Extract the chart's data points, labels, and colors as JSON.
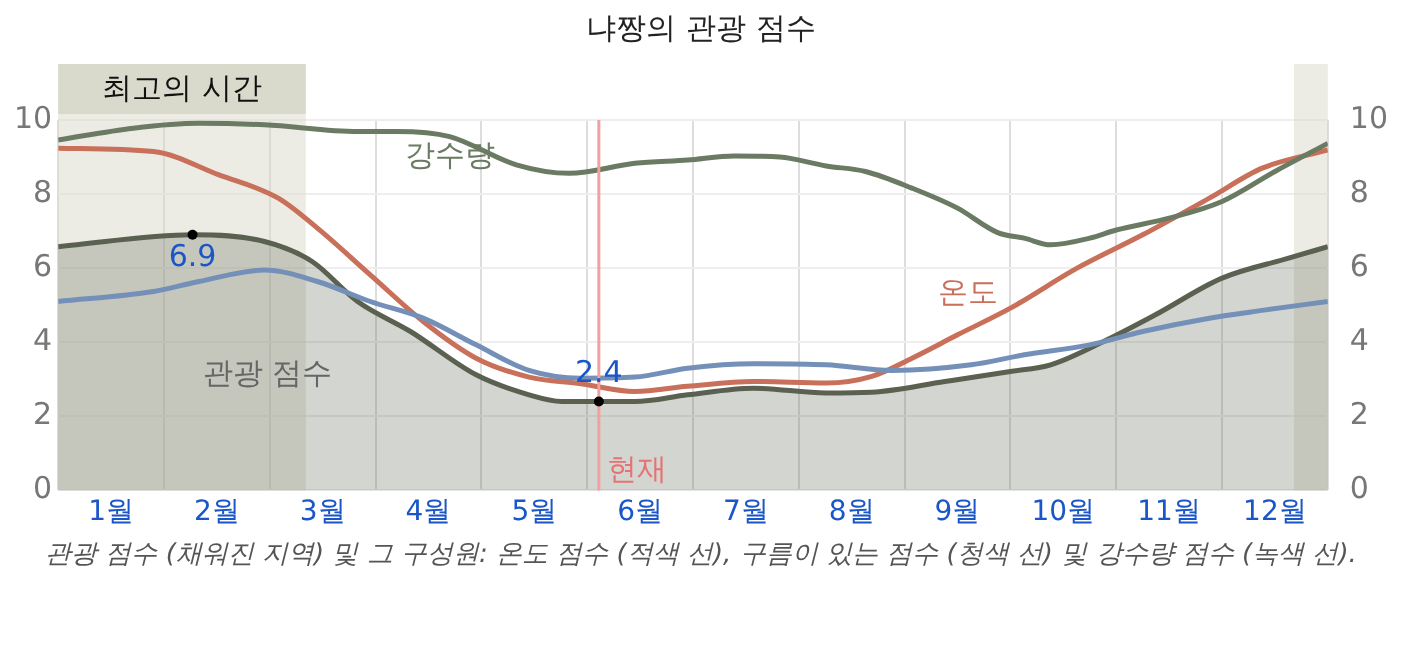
{
  "chart_data": {
    "type": "line",
    "title": "냐짱의 관광 점수",
    "xlim": [
      0,
      12
    ],
    "xticks": [
      {
        "value": 0,
        "label": null
      },
      {
        "value": 0.5,
        "label": "1월"
      },
      {
        "value": 1,
        "label": null
      },
      {
        "value": 1.5,
        "label": "2월"
      },
      {
        "value": 2,
        "label": null
      },
      {
        "value": 2.5,
        "label": "3월"
      },
      {
        "value": 3,
        "label": null
      },
      {
        "value": 3.5,
        "label": "4월"
      },
      {
        "value": 4,
        "label": null
      },
      {
        "value": 4.5,
        "label": "5월"
      },
      {
        "value": 5,
        "label": null
      },
      {
        "value": 5.5,
        "label": "6월"
      },
      {
        "value": 6,
        "label": null
      },
      {
        "value": 6.5,
        "label": "7월"
      },
      {
        "value": 7,
        "label": null
      },
      {
        "value": 7.5,
        "label": "8월"
      },
      {
        "value": 8,
        "label": null
      },
      {
        "value": 8.5,
        "label": "9월"
      },
      {
        "value": 9,
        "label": null
      },
      {
        "value": 9.5,
        "label": "10월"
      },
      {
        "value": 10,
        "label": null
      },
      {
        "value": 10.5,
        "label": "11월"
      },
      {
        "value": 11,
        "label": null
      },
      {
        "value": 11.5,
        "label": "12월"
      },
      {
        "value": 12,
        "label": null
      }
    ],
    "ylim": [
      0,
      10
    ],
    "yticks": [
      0,
      2,
      4,
      6,
      8,
      10
    ],
    "y2lim": [
      0,
      10
    ],
    "y2ticks": [
      0,
      2,
      4,
      6,
      8,
      10
    ],
    "grid": true,
    "legend": false,
    "marker": "none",
    "line_style": "solid",
    "series": [
      {
        "name": "관광 점수",
        "type": "area",
        "color": "#5a6150",
        "x": [
          0,
          1.27,
          1.95,
          2.4,
          2.83,
          3.33,
          3.95,
          4.45,
          4.76,
          5.11,
          5.45,
          5.95,
          6.57,
          7.26,
          7.69,
          8.38,
          9.0,
          9.38,
          9.88,
          10.37,
          11.0,
          11.63,
          12
        ],
        "values": [
          6.58,
          6.9,
          6.72,
          6.18,
          5.1,
          4.29,
          3.12,
          2.58,
          2.4,
          2.4,
          2.4,
          2.58,
          2.76,
          2.63,
          2.65,
          2.94,
          3.21,
          3.39,
          4.02,
          4.74,
          5.73,
          6.27,
          6.58
        ]
      },
      {
        "name": "온도",
        "color": "#c8705a",
        "x": [
          0,
          0.9,
          1.52,
          2.08,
          2.45,
          2.95,
          3.45,
          3.95,
          4.45,
          4.94,
          5.45,
          5.95,
          6.57,
          7.26,
          7.69,
          8.07,
          8.5,
          9.0,
          9.63,
          10.25,
          10.88,
          11.38,
          12
        ],
        "values": [
          9.24,
          9.15,
          8.52,
          7.89,
          7.08,
          5.82,
          4.56,
          3.57,
          3.06,
          2.88,
          2.67,
          2.81,
          2.94,
          2.9,
          3.08,
          3.57,
          4.2,
          4.92,
          6.0,
          6.9,
          7.89,
          8.7,
          9.19
        ]
      },
      {
        "color": "#7490b8",
        "x": [
          0,
          0.9,
          1.33,
          1.95,
          2.45,
          2.95,
          3.45,
          3.95,
          4.45,
          4.94,
          5.45,
          5.95,
          6.57,
          7.26,
          7.88,
          8.63,
          9.13,
          9.75,
          10.25,
          10.88,
          11.38,
          12
        ],
        "values": [
          5.1,
          5.37,
          5.64,
          5.95,
          5.64,
          5.1,
          4.65,
          3.93,
          3.24,
          3.03,
          3.06,
          3.3,
          3.42,
          3.39,
          3.24,
          3.39,
          3.66,
          3.93,
          4.29,
          4.65,
          4.86,
          5.1
        ]
      },
      {
        "name": "강수량",
        "color": "#6b7b63",
        "x": [
          0,
          0.71,
          1.33,
          1.95,
          2.83,
          3.2,
          3.7,
          4.33,
          4.83,
          5.45,
          5.95,
          6.39,
          6.82,
          7.26,
          7.63,
          8.07,
          8.5,
          8.88,
          9.13,
          9.38,
          9.75,
          10.0,
          10.5,
          11.0,
          11.5,
          12
        ],
        "values": [
          9.46,
          9.78,
          9.91,
          9.87,
          9.69,
          9.69,
          9.55,
          8.79,
          8.56,
          8.83,
          8.92,
          9.03,
          9.0,
          8.76,
          8.61,
          8.16,
          7.62,
          6.96,
          6.81,
          6.63,
          6.81,
          7.03,
          7.35,
          7.8,
          8.61,
          9.37
        ]
      }
    ],
    "bands": [
      {
        "axis": "x",
        "from": 0,
        "to": 2.34,
        "label": "최고의 시간",
        "color": "#d9dacb"
      },
      {
        "axis": "x",
        "from": 11.68,
        "to": 12,
        "label": null,
        "color": "#d9dacb"
      }
    ],
    "ref_lines": [
      {
        "axis": "x",
        "value": 5.11,
        "label": "현재",
        "color": "#f4a0a0"
      }
    ],
    "annotations": [
      {
        "text": "6.9",
        "x": 1.27,
        "y": 6.9
      },
      {
        "text": "2.4",
        "x": 5.11,
        "y": 2.4
      },
      "관광 점수 (채워진 지역) 및 그 구성원: 온도 점수 (적색 선), 구름이 있는 점수 (청색 선) 및 강수량 점수 (녹색 선)."
    ]
  }
}
